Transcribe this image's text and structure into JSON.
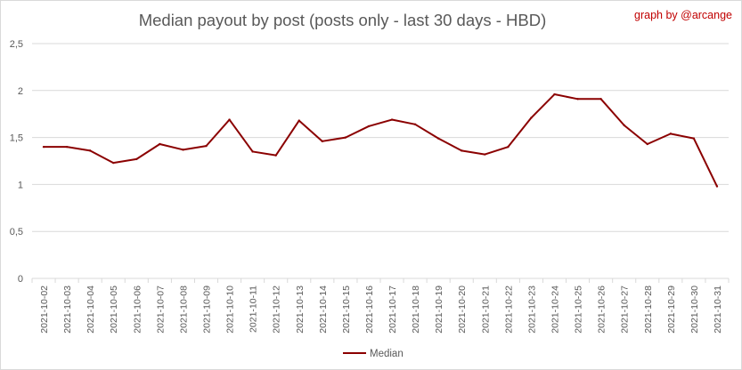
{
  "credit": "graph by @arcange",
  "chart_data": {
    "type": "line",
    "title": "Median payout by post (posts only - last 30 days - HBD)",
    "xlabel": "",
    "ylabel": "",
    "ylim": [
      0,
      2.5
    ],
    "yticks": [
      "0",
      "0,5",
      "1",
      "1,5",
      "2",
      "2,5"
    ],
    "grid": true,
    "legend_position": "bottom",
    "categories": [
      "2021-10-02",
      "2021-10-03",
      "2021-10-04",
      "2021-10-05",
      "2021-10-06",
      "2021-10-07",
      "2021-10-08",
      "2021-10-09",
      "2021-10-10",
      "2021-10-11",
      "2021-10-12",
      "2021-10-13",
      "2021-10-14",
      "2021-10-15",
      "2021-10-16",
      "2021-10-17",
      "2021-10-18",
      "2021-10-19",
      "2021-10-20",
      "2021-10-21",
      "2021-10-22",
      "2021-10-23",
      "2021-10-24",
      "2021-10-25",
      "2021-10-26",
      "2021-10-27",
      "2021-10-28",
      "2021-10-29",
      "2021-10-30",
      "2021-10-31"
    ],
    "series": [
      {
        "name": "Median",
        "color": "#8b0000",
        "values": [
          1.4,
          1.4,
          1.36,
          1.23,
          1.27,
          1.43,
          1.37,
          1.41,
          1.69,
          1.35,
          1.31,
          1.68,
          1.46,
          1.5,
          1.62,
          1.69,
          1.64,
          1.49,
          1.36,
          1.32,
          1.4,
          1.71,
          1.96,
          1.91,
          1.91,
          1.63,
          1.43,
          1.54,
          1.49,
          0.98
        ]
      }
    ]
  }
}
